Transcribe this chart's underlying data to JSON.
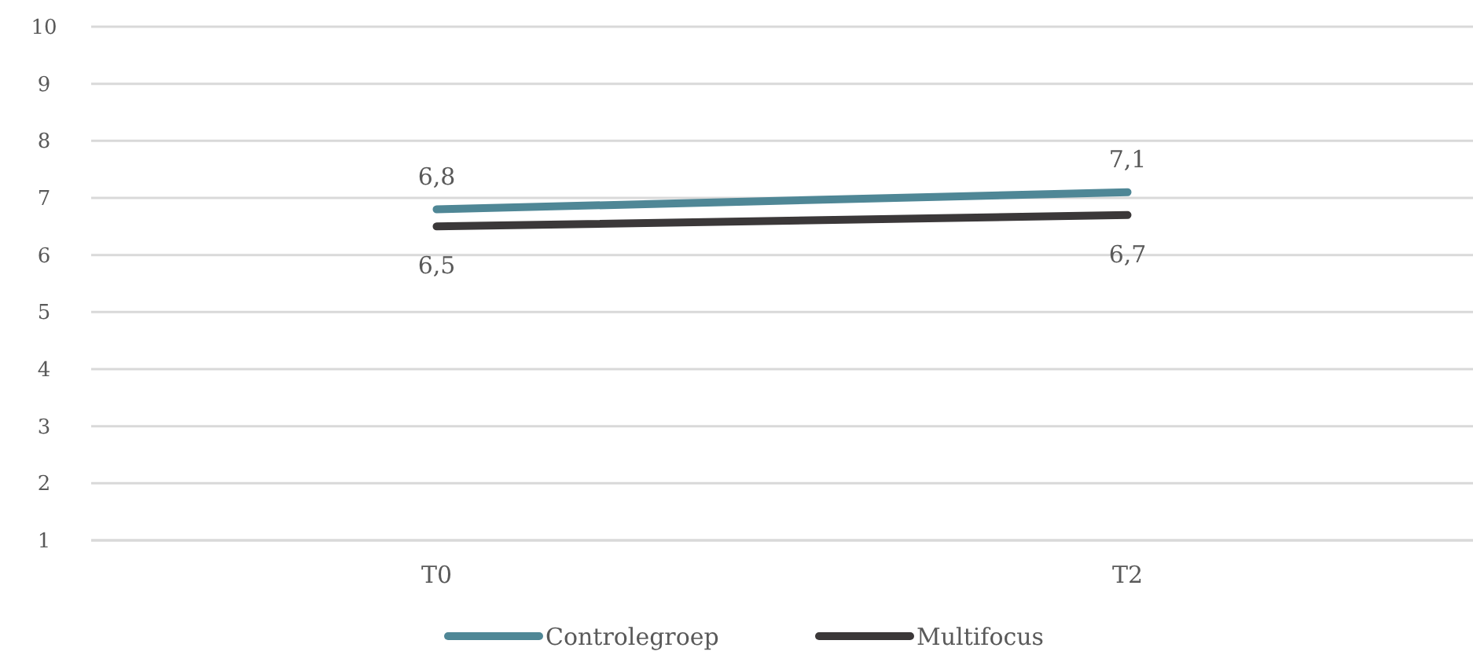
{
  "chart_data": {
    "type": "line",
    "categories": [
      "T0",
      "T2"
    ],
    "series": [
      {
        "name": "Controlegroep",
        "color": "#4f8796",
        "values": [
          6.8,
          7.1
        ],
        "value_labels": [
          "6,8",
          "7,1"
        ]
      },
      {
        "name": "Multifocus",
        "color": "#3b3839",
        "values": [
          6.5,
          6.7
        ],
        "value_labels": [
          "6,5",
          "6,7"
        ]
      }
    ],
    "ylim": [
      1,
      10
    ],
    "yticks": [
      1,
      2,
      3,
      4,
      5,
      6,
      7,
      8,
      9,
      10
    ],
    "grid": "y",
    "legend": "bottom",
    "marker": "none",
    "line_style": "solid"
  }
}
